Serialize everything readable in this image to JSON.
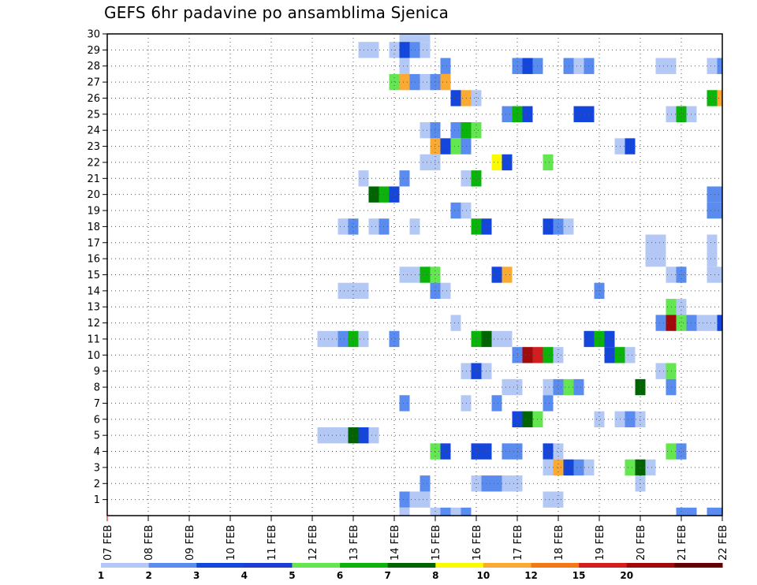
{
  "title": "GEFS 6hr padavine po ansamblima Sjenica",
  "chart_data": {
    "type": "heatmap",
    "title": "GEFS 6hr padavine po ansamblima Sjenica",
    "xlabel": "",
    "ylabel": "",
    "x_tick_labels": [
      "07 FEB",
      "08 FEB",
      "09 FEB",
      "10 FEB",
      "11 FEB",
      "12 FEB",
      "13 FEB",
      "14 FEB",
      "15 FEB",
      "16 FEB",
      "17 FEB",
      "18 FEB",
      "19 FEB",
      "20 FEB",
      "21 FEB",
      "22 FEB"
    ],
    "y_tick_labels": [
      "1",
      "2",
      "3",
      "4",
      "5",
      "6",
      "7",
      "8",
      "9",
      "10",
      "11",
      "12",
      "13",
      "14",
      "15",
      "16",
      "17",
      "18",
      "19",
      "20",
      "21",
      "22",
      "23",
      "24",
      "25",
      "26",
      "27",
      "28",
      "29",
      "30"
    ],
    "x_unit": "6-hour step from 07 FEB 00Z",
    "xlim": [
      0,
      60
    ],
    "ylim": [
      0,
      30
    ],
    "grid": true,
    "legend": {
      "position": "bottom",
      "labels": [
        "1",
        "2",
        "3",
        "4",
        "5",
        "6",
        "7",
        "8",
        "10",
        "12",
        "15",
        "20"
      ],
      "colors": [
        "#b4c8f5",
        "#5a8cf0",
        "#1446dc",
        "#1e3cd2",
        "#64e650",
        "#0ab40a",
        "#006400",
        "#fafa00",
        "#faaa32",
        "#f57814",
        "#d21e1e",
        "#a00a0a",
        "#640000"
      ]
    },
    "cells": [
      [
        30,
        29,
        0
      ],
      [
        30,
        30,
        0
      ],
      [
        30,
        31,
        0
      ],
      [
        29,
        25,
        0
      ],
      [
        29,
        26,
        0
      ],
      [
        29,
        28,
        0
      ],
      [
        29,
        29,
        2
      ],
      [
        29,
        30,
        1
      ],
      [
        29,
        31,
        0
      ],
      [
        28,
        29,
        0
      ],
      [
        28,
        33,
        1
      ],
      [
        28,
        40,
        1
      ],
      [
        28,
        41,
        2
      ],
      [
        28,
        42,
        1
      ],
      [
        28,
        45,
        1
      ],
      [
        28,
        46,
        0
      ],
      [
        28,
        47,
        1
      ],
      [
        28,
        54,
        0
      ],
      [
        28,
        55,
        0
      ],
      [
        28,
        59,
        0
      ],
      [
        28,
        60,
        1
      ],
      [
        27,
        28,
        4
      ],
      [
        27,
        29,
        8
      ],
      [
        27,
        30,
        1
      ],
      [
        27,
        31,
        0
      ],
      [
        27,
        32,
        1
      ],
      [
        27,
        33,
        8
      ],
      [
        26,
        34,
        2
      ],
      [
        26,
        35,
        8
      ],
      [
        26,
        36,
        0
      ],
      [
        26,
        59,
        5
      ],
      [
        26,
        60,
        8
      ],
      [
        25,
        39,
        1
      ],
      [
        25,
        40,
        5
      ],
      [
        25,
        41,
        2
      ],
      [
        25,
        46,
        2
      ],
      [
        25,
        47,
        2
      ],
      [
        25,
        55,
        0
      ],
      [
        25,
        56,
        5
      ],
      [
        25,
        57,
        0
      ],
      [
        24,
        31,
        0
      ],
      [
        24,
        32,
        1
      ],
      [
        24,
        34,
        1
      ],
      [
        24,
        35,
        5
      ],
      [
        24,
        36,
        4
      ],
      [
        23,
        32,
        8
      ],
      [
        23,
        33,
        2
      ],
      [
        23,
        34,
        4
      ],
      [
        23,
        35,
        1
      ],
      [
        23,
        50,
        0
      ],
      [
        23,
        51,
        2
      ],
      [
        22,
        31,
        0
      ],
      [
        22,
        32,
        0
      ],
      [
        22,
        38,
        7
      ],
      [
        22,
        39,
        2
      ],
      [
        22,
        43,
        4
      ],
      [
        21,
        25,
        0
      ],
      [
        21,
        29,
        1
      ],
      [
        21,
        35,
        0
      ],
      [
        21,
        36,
        5
      ],
      [
        20,
        26,
        6
      ],
      [
        20,
        27,
        5
      ],
      [
        20,
        28,
        2
      ],
      [
        20,
        59,
        1
      ],
      [
        20,
        60,
        1
      ],
      [
        19,
        34,
        1
      ],
      [
        19,
        35,
        0
      ],
      [
        19,
        59,
        1
      ],
      [
        19,
        60,
        1
      ],
      [
        18,
        23,
        0
      ],
      [
        18,
        24,
        1
      ],
      [
        18,
        26,
        0
      ],
      [
        18,
        27,
        1
      ],
      [
        18,
        30,
        0
      ],
      [
        18,
        36,
        5
      ],
      [
        18,
        37,
        2
      ],
      [
        18,
        43,
        2
      ],
      [
        18,
        44,
        1
      ],
      [
        18,
        45,
        0
      ],
      [
        17,
        53,
        0
      ],
      [
        17,
        54,
        0
      ],
      [
        17,
        59,
        0
      ],
      [
        16,
        53,
        0
      ],
      [
        16,
        54,
        0
      ],
      [
        16,
        59,
        0
      ],
      [
        15,
        29,
        0
      ],
      [
        15,
        30,
        0
      ],
      [
        15,
        31,
        5
      ],
      [
        15,
        32,
        4
      ],
      [
        15,
        38,
        2
      ],
      [
        15,
        39,
        8
      ],
      [
        15,
        55,
        0
      ],
      [
        15,
        56,
        1
      ],
      [
        15,
        59,
        0
      ],
      [
        15,
        60,
        0
      ],
      [
        14,
        23,
        0
      ],
      [
        14,
        24,
        0
      ],
      [
        14,
        25,
        0
      ],
      [
        14,
        32,
        1
      ],
      [
        14,
        33,
        0
      ],
      [
        14,
        48,
        1
      ],
      [
        13,
        55,
        4
      ],
      [
        13,
        56,
        0
      ],
      [
        12,
        34,
        0
      ],
      [
        12,
        54,
        1
      ],
      [
        12,
        55,
        11
      ],
      [
        12,
        56,
        4
      ],
      [
        12,
        57,
        1
      ],
      [
        12,
        58,
        0
      ],
      [
        12,
        59,
        0
      ],
      [
        12,
        60,
        2
      ],
      [
        11,
        21,
        0
      ],
      [
        11,
        22,
        0
      ],
      [
        11,
        23,
        1
      ],
      [
        11,
        24,
        5
      ],
      [
        11,
        25,
        0
      ],
      [
        11,
        28,
        1
      ],
      [
        11,
        36,
        5
      ],
      [
        11,
        37,
        6
      ],
      [
        11,
        38,
        0
      ],
      [
        11,
        39,
        0
      ],
      [
        11,
        47,
        2
      ],
      [
        11,
        48,
        5
      ],
      [
        11,
        49,
        2
      ],
      [
        10,
        40,
        1
      ],
      [
        10,
        41,
        11
      ],
      [
        10,
        42,
        10
      ],
      [
        10,
        43,
        5
      ],
      [
        10,
        44,
        0
      ],
      [
        10,
        49,
        2
      ],
      [
        10,
        50,
        5
      ],
      [
        10,
        51,
        0
      ],
      [
        9,
        35,
        0
      ],
      [
        9,
        36,
        2
      ],
      [
        9,
        37,
        0
      ],
      [
        9,
        54,
        0
      ],
      [
        9,
        55,
        4
      ],
      [
        8,
        39,
        0
      ],
      [
        8,
        40,
        0
      ],
      [
        8,
        43,
        0
      ],
      [
        8,
        44,
        1
      ],
      [
        8,
        45,
        4
      ],
      [
        8,
        46,
        1
      ],
      [
        8,
        52,
        6
      ],
      [
        8,
        55,
        1
      ],
      [
        7,
        29,
        1
      ],
      [
        7,
        35,
        0
      ],
      [
        7,
        38,
        1
      ],
      [
        7,
        43,
        1
      ],
      [
        6,
        40,
        2
      ],
      [
        6,
        41,
        6
      ],
      [
        6,
        42,
        4
      ],
      [
        6,
        48,
        0
      ],
      [
        6,
        50,
        0
      ],
      [
        6,
        51,
        1
      ],
      [
        6,
        52,
        0
      ],
      [
        5,
        21,
        0
      ],
      [
        5,
        22,
        0
      ],
      [
        5,
        23,
        0
      ],
      [
        5,
        24,
        6
      ],
      [
        5,
        25,
        2
      ],
      [
        5,
        26,
        0
      ],
      [
        4,
        32,
        4
      ],
      [
        4,
        33,
        2
      ],
      [
        4,
        36,
        2
      ],
      [
        4,
        37,
        2
      ],
      [
        4,
        39,
        1
      ],
      [
        4,
        40,
        1
      ],
      [
        4,
        43,
        2
      ],
      [
        4,
        44,
        0
      ],
      [
        4,
        55,
        4
      ],
      [
        4,
        56,
        1
      ],
      [
        3,
        43,
        0
      ],
      [
        3,
        44,
        8
      ],
      [
        3,
        45,
        2
      ],
      [
        3,
        46,
        1
      ],
      [
        3,
        47,
        0
      ],
      [
        3,
        51,
        4
      ],
      [
        3,
        52,
        6
      ],
      [
        3,
        53,
        0
      ],
      [
        2,
        31,
        1
      ],
      [
        2,
        36,
        0
      ],
      [
        2,
        37,
        1
      ],
      [
        2,
        38,
        1
      ],
      [
        2,
        39,
        0
      ],
      [
        2,
        40,
        0
      ],
      [
        2,
        52,
        0
      ],
      [
        1,
        29,
        1
      ],
      [
        1,
        30,
        0
      ],
      [
        1,
        31,
        0
      ],
      [
        1,
        43,
        0
      ],
      [
        1,
        44,
        0
      ],
      [
        0,
        29,
        0
      ],
      [
        0,
        32,
        0
      ],
      [
        0,
        33,
        1
      ],
      [
        0,
        34,
        0
      ],
      [
        0,
        35,
        1
      ],
      [
        0,
        56,
        1
      ],
      [
        0,
        57,
        1
      ],
      [
        0,
        59,
        1
      ],
      [
        0,
        60,
        1
      ]
    ]
  }
}
